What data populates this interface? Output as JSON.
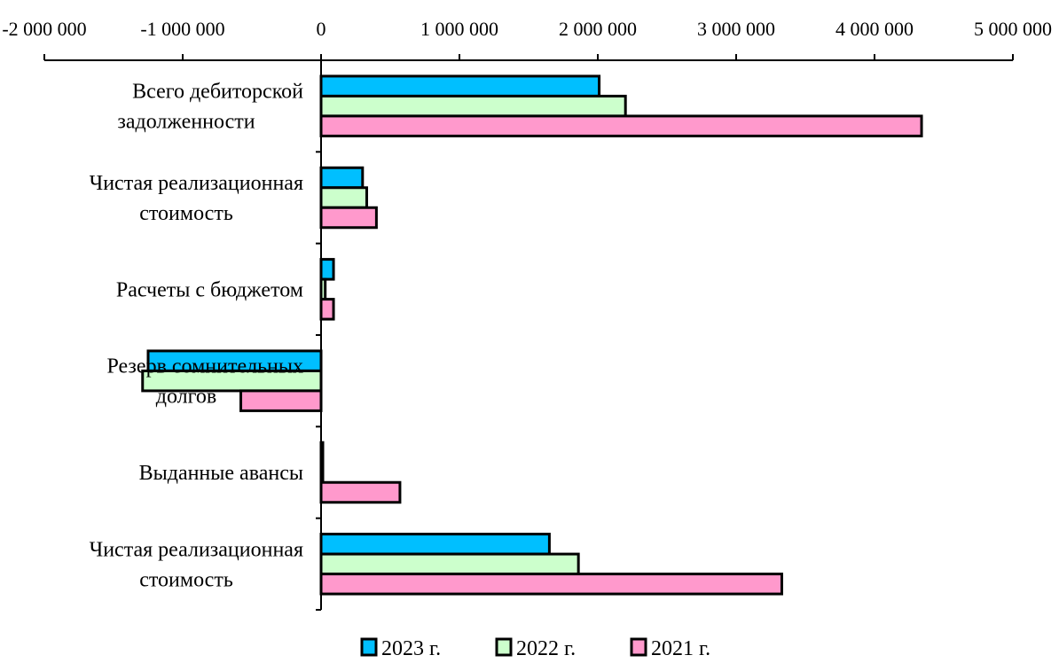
{
  "chart_data": {
    "type": "bar",
    "orientation": "horizontal",
    "title": "",
    "xlabel": "",
    "ylabel": "",
    "xlim": [
      -2000000,
      5000000
    ],
    "x_ticks": [
      -2000000,
      -1000000,
      0,
      1000000,
      2000000,
      3000000,
      4000000,
      5000000
    ],
    "x_tick_labels": [
      "-2 000 000",
      "-1 000 000",
      "0",
      "1 000 000",
      "2 000 000",
      "3 000 000",
      "4 000 000",
      "5 000 000"
    ],
    "x_axis_position": "top",
    "grid": false,
    "legend_position": "bottom",
    "categories": [
      [
        "Всего дебиторской",
        "задолженности"
      ],
      [
        "Чистая реализационная",
        "стоимость"
      ],
      [
        "Расчеты с бюджетом"
      ],
      [
        "Резерв сомнительных",
        "долгов"
      ],
      [
        "Выданные авансы"
      ],
      [
        "Чистая реализационная",
        "стоимость"
      ]
    ],
    "series": [
      {
        "name": "2023 г.",
        "color": "#00bfff",
        "values": [
          2010000,
          300000,
          90000,
          -1250000,
          5000,
          1650000
        ]
      },
      {
        "name": "2022 г.",
        "color": "#ccffcc",
        "values": [
          2200000,
          330000,
          30000,
          -1290000,
          5000,
          1860000
        ]
      },
      {
        "name": "2021 г.",
        "color": "#ff99cc",
        "values": [
          4340000,
          400000,
          90000,
          -580000,
          570000,
          3330000
        ]
      }
    ]
  }
}
